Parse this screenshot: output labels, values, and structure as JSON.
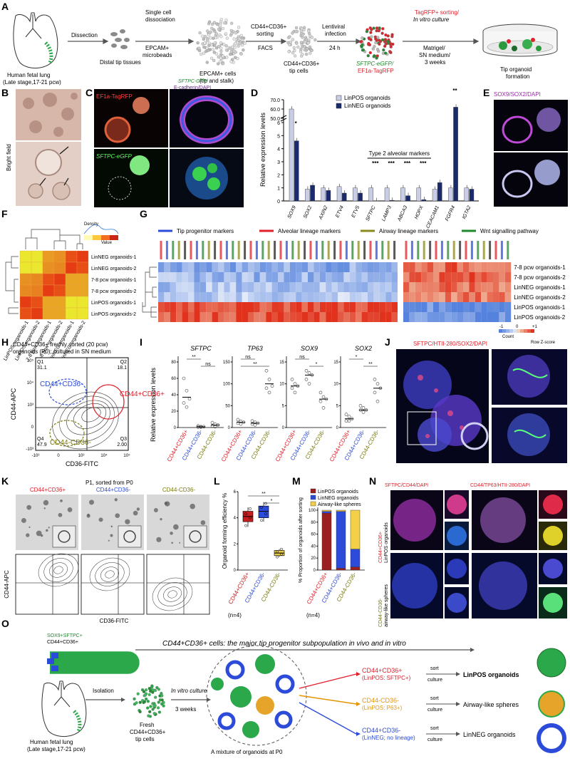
{
  "panel_letters": [
    "A",
    "B",
    "C",
    "D",
    "E",
    "F",
    "G",
    "H",
    "I",
    "J",
    "K",
    "L",
    "M",
    "N",
    "O"
  ],
  "A": {
    "source_l1": "Human fetal lung",
    "source_l2": "(Late stage,17-21 pcw)",
    "step1": "Dissection",
    "step1_out": "Distal tip tissues",
    "step2_l1": "Single cell",
    "step2_l2": "dissociation",
    "step2_l3": "EPCAM+",
    "step2_l4": "microbeads",
    "step2_out_l1": "EPCAM+ cells",
    "step2_out_l2": "(tip and stalk)",
    "step3_l1": "CD44+CD36+",
    "step3_l2": "sorting",
    "step3_l3": "FACS",
    "step3_out_l1": "CD44+CD36+",
    "step3_out_l2": "tip cells",
    "step4_l1": "Lentiviral",
    "step4_l2": "infection",
    "step4_l3": "24 h",
    "step4_out_l1": "SFTPC-eGFP/",
    "step4_out_l2": "EF1a-TagRFP",
    "step5_l1": "TagRFP+ sorting/",
    "step5_l2": "In vitro culture",
    "step5_l3": "Matrigel/",
    "step5_l4": "SN medium/",
    "step5_l5": "3 weeks",
    "step5_out_l1": "Tip organoid",
    "step5_out_l2": "formation"
  },
  "B": {
    "side_label": "Bright field"
  },
  "C": {
    "top_left": "EF1a-TagRFP",
    "bottom_left": "SFTPC-eGFP",
    "title_l1": "SFTPC-GFP/",
    "title_l2": "E-cadherin/DAPI"
  },
  "E": {
    "title": "SOX9/SOX2/DAPI"
  },
  "F": {
    "rows": [
      "LinNEG organoids-1",
      "LinNEG organoids-2",
      "7-8 pcw organoids-1",
      "7-8 pcw organoids-2",
      "LinPOS organoids-1",
      "LinPOS organoids-2"
    ],
    "cols": [
      "LinPOS organoids-1",
      "LinPOS organoids-2",
      "7-8 pcw organoids-1",
      "7-8 pcw organoids-2",
      "LinNEG organoids-1",
      "LinNEG organoids-2"
    ],
    "legend_title": "Density",
    "legend_value": "Value"
  },
  "G": {
    "legend": [
      {
        "label": "Tip progenitor markers",
        "color": "#2b4bd8"
      },
      {
        "label": "Alveolar lineage markers",
        "color": "#e0202a"
      },
      {
        "label": "Airway lineage markers",
        "color": "#8a8a1e"
      },
      {
        "label": "Wnt signalling pathway",
        "color": "#1f8a2e"
      }
    ],
    "rows": [
      "7-8 pcw organoids-1",
      "7-8 pcw organoids-2",
      "LinNEG organoids-1",
      "LinNEG organoids-2",
      "LinPOS organoids-1",
      "LinPOS organoids-2"
    ],
    "scale_title": "Row Z-score",
    "scale_ticks": [
      "-1",
      "0",
      "+1"
    ],
    "count_label": "Count"
  },
  "H": {
    "title_l1": "CD44+CD36+ freshly sorted (20 pcw)",
    "title_l2": "organoids (P0); cultured in SN medium"
  },
  "K": {
    "title": "P1, sorted from P0",
    "groups": [
      {
        "label": "CD44+CD36+",
        "color": "#e0202a"
      },
      {
        "label": "CD44+CD36-",
        "color": "#2b4bd8"
      },
      {
        "label": "CD44-CD36-",
        "color": "#7a7a10"
      }
    ],
    "ylabel": "CD44-APC",
    "xlabel": "CD36-FITC"
  },
  "J": {
    "title": "SFTPC/HTII-280/SOX2/DAPI"
  },
  "N": {
    "title_left": "SFTPC/CD44/DAPI",
    "title_right": "CD44/TP63/HTII-280/DAPI",
    "row1_l1": "CD44+CD36+",
    "row1_l2": "LinPOS organoids",
    "row2_l1": "CD44-CD36-",
    "row2_l2": "airway-like spheres"
  },
  "O": {
    "top_text": "CD44+CD36+ cells: the major tip progenitor subpopulation in vivo and in vitro",
    "tip_l1": "SOX9+SFTPC+",
    "tip_l2": "CD44+CD36+",
    "isolation": "Isolation",
    "source_l1": "Human fetal lung",
    "source_l2": "(Late stage,17-21 pcw)",
    "fresh_l1": "Fresh",
    "fresh_l2": "CD44+CD36+",
    "fresh_l3": "tip cells",
    "culture_l1": "In vitro culture",
    "culture_l2": "3 weeks",
    "mixture": "A mixture of organoids at P0",
    "branches": [
      {
        "l1": "CD44+CD36+",
        "l2": "(LinPOS: SFTPC+)",
        "result": "LinPOS organoids",
        "color": "#e0202a"
      },
      {
        "l1": "CD44-CD36-",
        "l2": "(LinPOS: P63+)",
        "result": "Airway-like spheres",
        "color": "#e69500"
      },
      {
        "l1": "CD44+CD36-",
        "l2": "(LinNEG; no lineage)",
        "result": "LinNEG organoids",
        "color": "#2b4bd8"
      }
    ],
    "sort": "sort",
    "culture": "culture"
  },
  "chart_data": [
    {
      "panel": "D",
      "type": "bar",
      "categories": [
        "SOX9",
        "SOX2",
        "AXIN2",
        "ETV4",
        "ETV5",
        "SFTPC",
        "LAMP3",
        "ABCA3",
        "HOPX",
        "CEACAM1",
        "FGFR4",
        "IGTA2"
      ],
      "series": [
        {
          "name": "LinPOS organoids",
          "color": "#c9cde6",
          "values": [
            60,
            0.9,
            1.0,
            1.1,
            1.0,
            1.0,
            1.0,
            1.0,
            1.0,
            0.9,
            1.0,
            1.0
          ]
        },
        {
          "name": "LinNEG organoids",
          "color": "#1a2a6c",
          "values": [
            4.6,
            1.2,
            0.8,
            0.6,
            0.6,
            0.02,
            0.05,
            0.4,
            0.1,
            1.4,
            62,
            0.9
          ]
        }
      ],
      "ylabel": "Relative expression levels",
      "yticks": [
        "0",
        "1",
        "2",
        "3",
        "4",
        "5",
        "6",
        "50.0",
        "60.0",
        "70.0"
      ],
      "broken_axis": true,
      "annotation": "Type 2 alveolar markers",
      "significance": [
        "*",
        "",
        "",
        "",
        "",
        "***",
        "***",
        "***",
        "***",
        "",
        "**",
        ""
      ]
    },
    {
      "panel": "H",
      "type": "scatter",
      "xlabel": "CD36-FITC",
      "ylabel": "CD44-APC",
      "quadrants": [
        {
          "id": "Q1",
          "value": "31.1"
        },
        {
          "id": "Q2",
          "value": "18.1"
        },
        {
          "id": "Q3",
          "value": "2.00"
        },
        {
          "id": "Q4",
          "value": "47.9"
        }
      ],
      "gates": [
        {
          "label": "CD44+CD36-",
          "color": "#2b4bd8"
        },
        {
          "label": "CD44+CD36+",
          "color": "#e0202a"
        },
        {
          "label": "CD44-CD36-",
          "color": "#7a7a10"
        }
      ]
    },
    {
      "panel": "I",
      "type": "scatter",
      "ylabel": "Relative expression levels",
      "categories": [
        "CD44+CD36+",
        "CD44+CD36-",
        "CD44-CD36-"
      ],
      "category_colors": [
        "#e0202a",
        "#2b4bd8",
        "#7a7a10"
      ],
      "subplots": [
        {
          "gene": "SFTPC",
          "yticks": [
            "0",
            "20",
            "40",
            "60",
            "80"
          ],
          "ymax": 80,
          "points": [
            [
              60,
              45,
              35,
              30,
              25
            ],
            [
              2,
              1,
              1,
              0.5,
              0.5
            ],
            [
              6,
              4,
              3,
              2,
              1
            ]
          ],
          "means": [
            37,
            1,
            3
          ],
          "sig": [
            {
              "pair": [
                0,
                1
              ],
              "mark": "**"
            },
            {
              "pair": [
                1,
                2
              ],
              "mark": "ns"
            }
          ]
        },
        {
          "gene": "TP63",
          "yticks": [
            "0",
            "50",
            "100",
            "150"
          ],
          "ymax": 150,
          "points": [
            [
              18,
              14,
              12,
              10,
              8
            ],
            [
              15,
              12,
              10,
              8,
              6
            ],
            [
              130,
              110,
              95,
              90,
              80
            ]
          ],
          "means": [
            12,
            10,
            100
          ],
          "sig": [
            {
              "pair": [
                0,
                1
              ],
              "mark": "ns"
            },
            {
              "pair": [
                0,
                2
              ],
              "mark": "**"
            }
          ]
        },
        {
          "gene": "SOX9",
          "yticks": [
            "0",
            "5",
            "10",
            "15"
          ],
          "ymax": 15,
          "points": [
            [
              11,
              10,
              9.5,
              9,
              8
            ],
            [
              13,
              12.5,
              12,
              11,
              10
            ],
            [
              8,
              7,
              6.5,
              6,
              4.5
            ]
          ],
          "means": [
            9.5,
            12,
            6.5
          ],
          "sig": [
            {
              "pair": [
                0,
                1
              ],
              "mark": "ns"
            },
            {
              "pair": [
                1,
                2
              ],
              "mark": "*"
            }
          ]
        },
        {
          "gene": "SOX2",
          "yticks": [
            "0",
            "5",
            "10",
            "15"
          ],
          "ymax": 15,
          "points": [
            [
              3,
              2.5,
              2,
              1.5,
              1.5
            ],
            [
              5,
              4.5,
              4,
              4,
              3.5
            ],
            [
              11,
              10,
              9,
              8,
              6
            ]
          ],
          "means": [
            2,
            4,
            9
          ],
          "sig": [
            {
              "pair": [
                0,
                1
              ],
              "mark": "*"
            },
            {
              "pair": [
                1,
                2
              ],
              "mark": "**"
            }
          ]
        }
      ]
    },
    {
      "panel": "L",
      "type": "bar",
      "subtype": "box",
      "categories": [
        "CD44+CD36+",
        "CD44+CD36-",
        "CD44-CD36-"
      ],
      "colors": [
        "#c41e1e",
        "#2b4bd8",
        "#e6c84a"
      ],
      "boxes": [
        {
          "min": 3.3,
          "q1": 3.7,
          "median": 4.1,
          "q3": 4.5,
          "max": 4.8,
          "points": [
            3.4,
            4.0,
            4.3,
            4.7
          ]
        },
        {
          "min": 3.7,
          "q1": 4.0,
          "median": 4.5,
          "q3": 4.9,
          "max": 5.2,
          "points": [
            3.8,
            4.3,
            4.8,
            5.1
          ]
        },
        {
          "min": 1.0,
          "q1": 1.1,
          "median": 1.3,
          "q3": 1.5,
          "max": 1.6,
          "points": [
            1.0,
            1.2,
            1.4,
            1.6
          ]
        }
      ],
      "ylabel": "Organoid forming efficiency %",
      "ylim": [
        0,
        6
      ],
      "yticks": [
        "0",
        "2",
        "4",
        "6"
      ],
      "n_label": "(n=4)",
      "significance": [
        {
          "pair": [
            0,
            2
          ],
          "mark": "**"
        },
        {
          "pair": [
            1,
            2
          ],
          "mark": "*"
        }
      ]
    },
    {
      "panel": "M",
      "type": "bar",
      "subtype": "stacked",
      "categories": [
        "CD44+CD36+",
        "CD44+CD36-",
        "CD44-CD36-"
      ],
      "series": [
        {
          "name": "LinPOS organoids",
          "color": "#9c1f1f",
          "values": [
            95,
            3,
            5
          ]
        },
        {
          "name": "LinNEG organoids",
          "color": "#2b4bd8",
          "values": [
            3,
            95,
            30
          ]
        },
        {
          "name": "Airway-like spheres",
          "color": "#f2d04a",
          "values": [
            2,
            2,
            65
          ]
        }
      ],
      "ylabel": "% Proportion of organoids after sorting",
      "ylim": [
        0,
        100
      ],
      "yticks": [
        "0",
        "20",
        "40",
        "60",
        "80",
        "100"
      ],
      "n_label": "(n=4)"
    }
  ]
}
